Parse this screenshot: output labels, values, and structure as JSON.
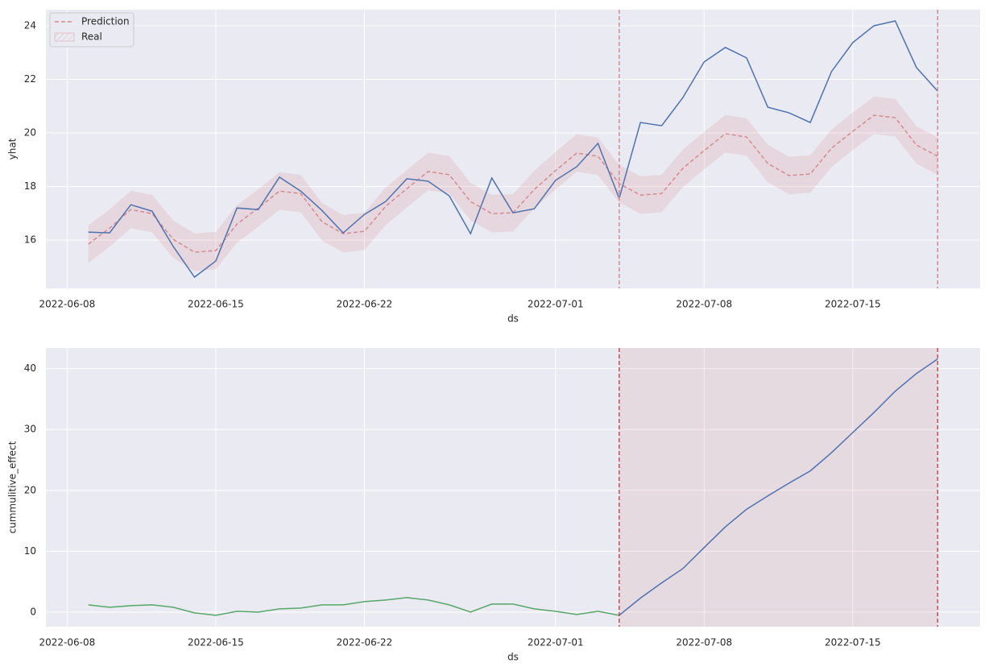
{
  "chart_data": [
    {
      "type": "line",
      "xlabel": "ds",
      "ylabel": "yhat",
      "x": [
        "2022-06-09",
        "2022-06-10",
        "2022-06-11",
        "2022-06-12",
        "2022-06-13",
        "2022-06-14",
        "2022-06-15",
        "2022-06-16",
        "2022-06-17",
        "2022-06-18",
        "2022-06-19",
        "2022-06-20",
        "2022-06-21",
        "2022-06-22",
        "2022-06-23",
        "2022-06-24",
        "2022-06-25",
        "2022-06-26",
        "2022-06-27",
        "2022-06-28",
        "2022-06-29",
        "2022-06-30",
        "2022-07-01",
        "2022-07-02",
        "2022-07-03",
        "2022-07-04",
        "2022-07-05",
        "2022-07-06",
        "2022-07-07",
        "2022-07-08",
        "2022-07-09",
        "2022-07-10",
        "2022-07-11",
        "2022-07-12",
        "2022-07-13",
        "2022-07-14",
        "2022-07-15",
        "2022-07-16",
        "2022-07-17",
        "2022-07-18",
        "2022-07-19"
      ],
      "xlim": [
        "2022-06-07",
        "2022-07-21"
      ],
      "xticks": [
        "2022-06-08",
        "2022-06-15",
        "2022-06-22",
        "2022-07-01",
        "2022-07-08",
        "2022-07-15"
      ],
      "ylim": [
        14.2,
        24.6
      ],
      "yticks": [
        16,
        18,
        20,
        22,
        24
      ],
      "grid": true,
      "legend": "upper left",
      "band": {
        "name": "Real",
        "color": "#d68a8f",
        "lower": [
          15.15,
          15.75,
          16.44,
          16.29,
          15.33,
          14.85,
          14.91,
          15.9,
          16.5,
          17.13,
          17.04,
          15.99,
          15.54,
          15.63,
          16.56,
          17.22,
          17.86,
          17.74,
          16.74,
          16.29,
          16.32,
          17.19,
          17.89,
          18.55,
          18.43,
          17.41,
          16.98,
          17.04,
          17.98,
          18.64,
          19.27,
          19.15,
          18.16,
          17.71,
          17.77,
          18.73,
          19.36,
          19.96,
          19.87,
          18.85,
          18.43
        ],
        "upper": [
          16.55,
          17.15,
          17.84,
          17.69,
          16.73,
          16.25,
          16.31,
          17.3,
          17.9,
          18.53,
          18.44,
          17.39,
          16.94,
          17.03,
          17.96,
          18.62,
          19.26,
          19.14,
          18.14,
          17.69,
          17.72,
          18.59,
          19.29,
          19.95,
          19.83,
          18.81,
          18.38,
          18.44,
          19.38,
          20.04,
          20.67,
          20.55,
          19.56,
          19.11,
          19.17,
          20.13,
          20.76,
          21.36,
          21.27,
          20.25,
          19.83
        ]
      },
      "series": [
        {
          "name": "Prediction",
          "color": "#d68a8f",
          "dashed": true,
          "values": [
            15.85,
            16.45,
            17.14,
            16.99,
            16.03,
            15.55,
            15.61,
            16.6,
            17.2,
            17.83,
            17.74,
            16.69,
            16.24,
            16.33,
            17.26,
            17.92,
            18.56,
            18.44,
            17.44,
            16.99,
            17.02,
            17.89,
            18.59,
            19.25,
            19.13,
            18.11,
            17.68,
            17.74,
            18.68,
            19.34,
            19.97,
            19.85,
            18.86,
            18.41,
            18.47,
            19.43,
            20.06,
            20.66,
            20.57,
            19.55,
            19.13
          ]
        },
        {
          "color": "#4c72b0",
          "values": [
            16.3,
            16.27,
            17.32,
            17.08,
            15.76,
            14.62,
            15.22,
            17.2,
            17.14,
            18.35,
            17.83,
            17.11,
            16.27,
            16.96,
            17.44,
            18.29,
            18.2,
            17.65,
            16.24,
            18.32,
            17.02,
            17.17,
            18.23,
            18.74,
            19.61,
            17.56,
            20.39,
            20.27,
            21.32,
            22.65,
            23.19,
            22.8,
            20.96,
            20.75,
            20.39,
            22.29,
            23.37,
            24.0,
            24.18,
            22.44,
            21.56
          ]
        }
      ],
      "vlines": [
        "2022-07-04",
        "2022-07-19"
      ],
      "vline_color": "#d68a8f"
    },
    {
      "type": "line",
      "xlabel": "ds",
      "ylabel": "cummulitive_effect",
      "x": [
        "2022-06-09",
        "2022-06-10",
        "2022-06-11",
        "2022-06-12",
        "2022-06-13",
        "2022-06-14",
        "2022-06-15",
        "2022-06-16",
        "2022-06-17",
        "2022-06-18",
        "2022-06-19",
        "2022-06-20",
        "2022-06-21",
        "2022-06-22",
        "2022-06-23",
        "2022-06-24",
        "2022-06-25",
        "2022-06-26",
        "2022-06-27",
        "2022-06-28",
        "2022-06-29",
        "2022-06-30",
        "2022-07-01",
        "2022-07-02",
        "2022-07-03",
        "2022-07-04",
        "2022-07-05",
        "2022-07-06",
        "2022-07-07",
        "2022-07-08",
        "2022-07-09",
        "2022-07-10",
        "2022-07-11",
        "2022-07-12",
        "2022-07-13",
        "2022-07-14",
        "2022-07-15",
        "2022-07-16",
        "2022-07-17",
        "2022-07-18",
        "2022-07-19"
      ],
      "xlim": [
        "2022-06-07",
        "2022-07-21"
      ],
      "xticks": [
        "2022-06-08",
        "2022-06-15",
        "2022-06-22",
        "2022-07-01",
        "2022-07-08",
        "2022-07-15"
      ],
      "ylim": [
        -2.4,
        43.4
      ],
      "yticks": [
        0,
        10,
        20,
        30,
        40
      ],
      "grid": true,
      "series": [
        {
          "color": "#55a868",
          "values": [
            1.19,
            0.79,
            1.06,
            1.19,
            0.79,
            -0.13,
            -0.53,
            0.13,
            0,
            0.53,
            0.66,
            1.19,
            1.19,
            1.72,
            1.99,
            2.38,
            1.99,
            1.19,
            0,
            1.32,
            1.32,
            0.53,
            0.13,
            -0.4,
            0.13,
            -0.53,
            null,
            null,
            null,
            null,
            null,
            null,
            null,
            null,
            null,
            null,
            null,
            null,
            null,
            null,
            null
          ]
        },
        {
          "color": "#4c72b0",
          "values": [
            null,
            null,
            null,
            null,
            null,
            null,
            null,
            null,
            null,
            null,
            null,
            null,
            null,
            null,
            null,
            null,
            null,
            null,
            null,
            null,
            null,
            null,
            null,
            null,
            null,
            -0.53,
            2.3,
            4.8,
            7.15,
            10.6,
            14.0,
            16.9,
            19.1,
            21.2,
            23.2,
            26.2,
            29.5,
            32.8,
            36.3,
            39.2,
            41.6
          ]
        }
      ],
      "span": [
        "2022-07-04",
        "2022-07-19"
      ],
      "span_color": "#c44e52",
      "vlines": [
        "2022-07-04",
        "2022-07-19"
      ],
      "vline_color": "#c44e52"
    }
  ]
}
